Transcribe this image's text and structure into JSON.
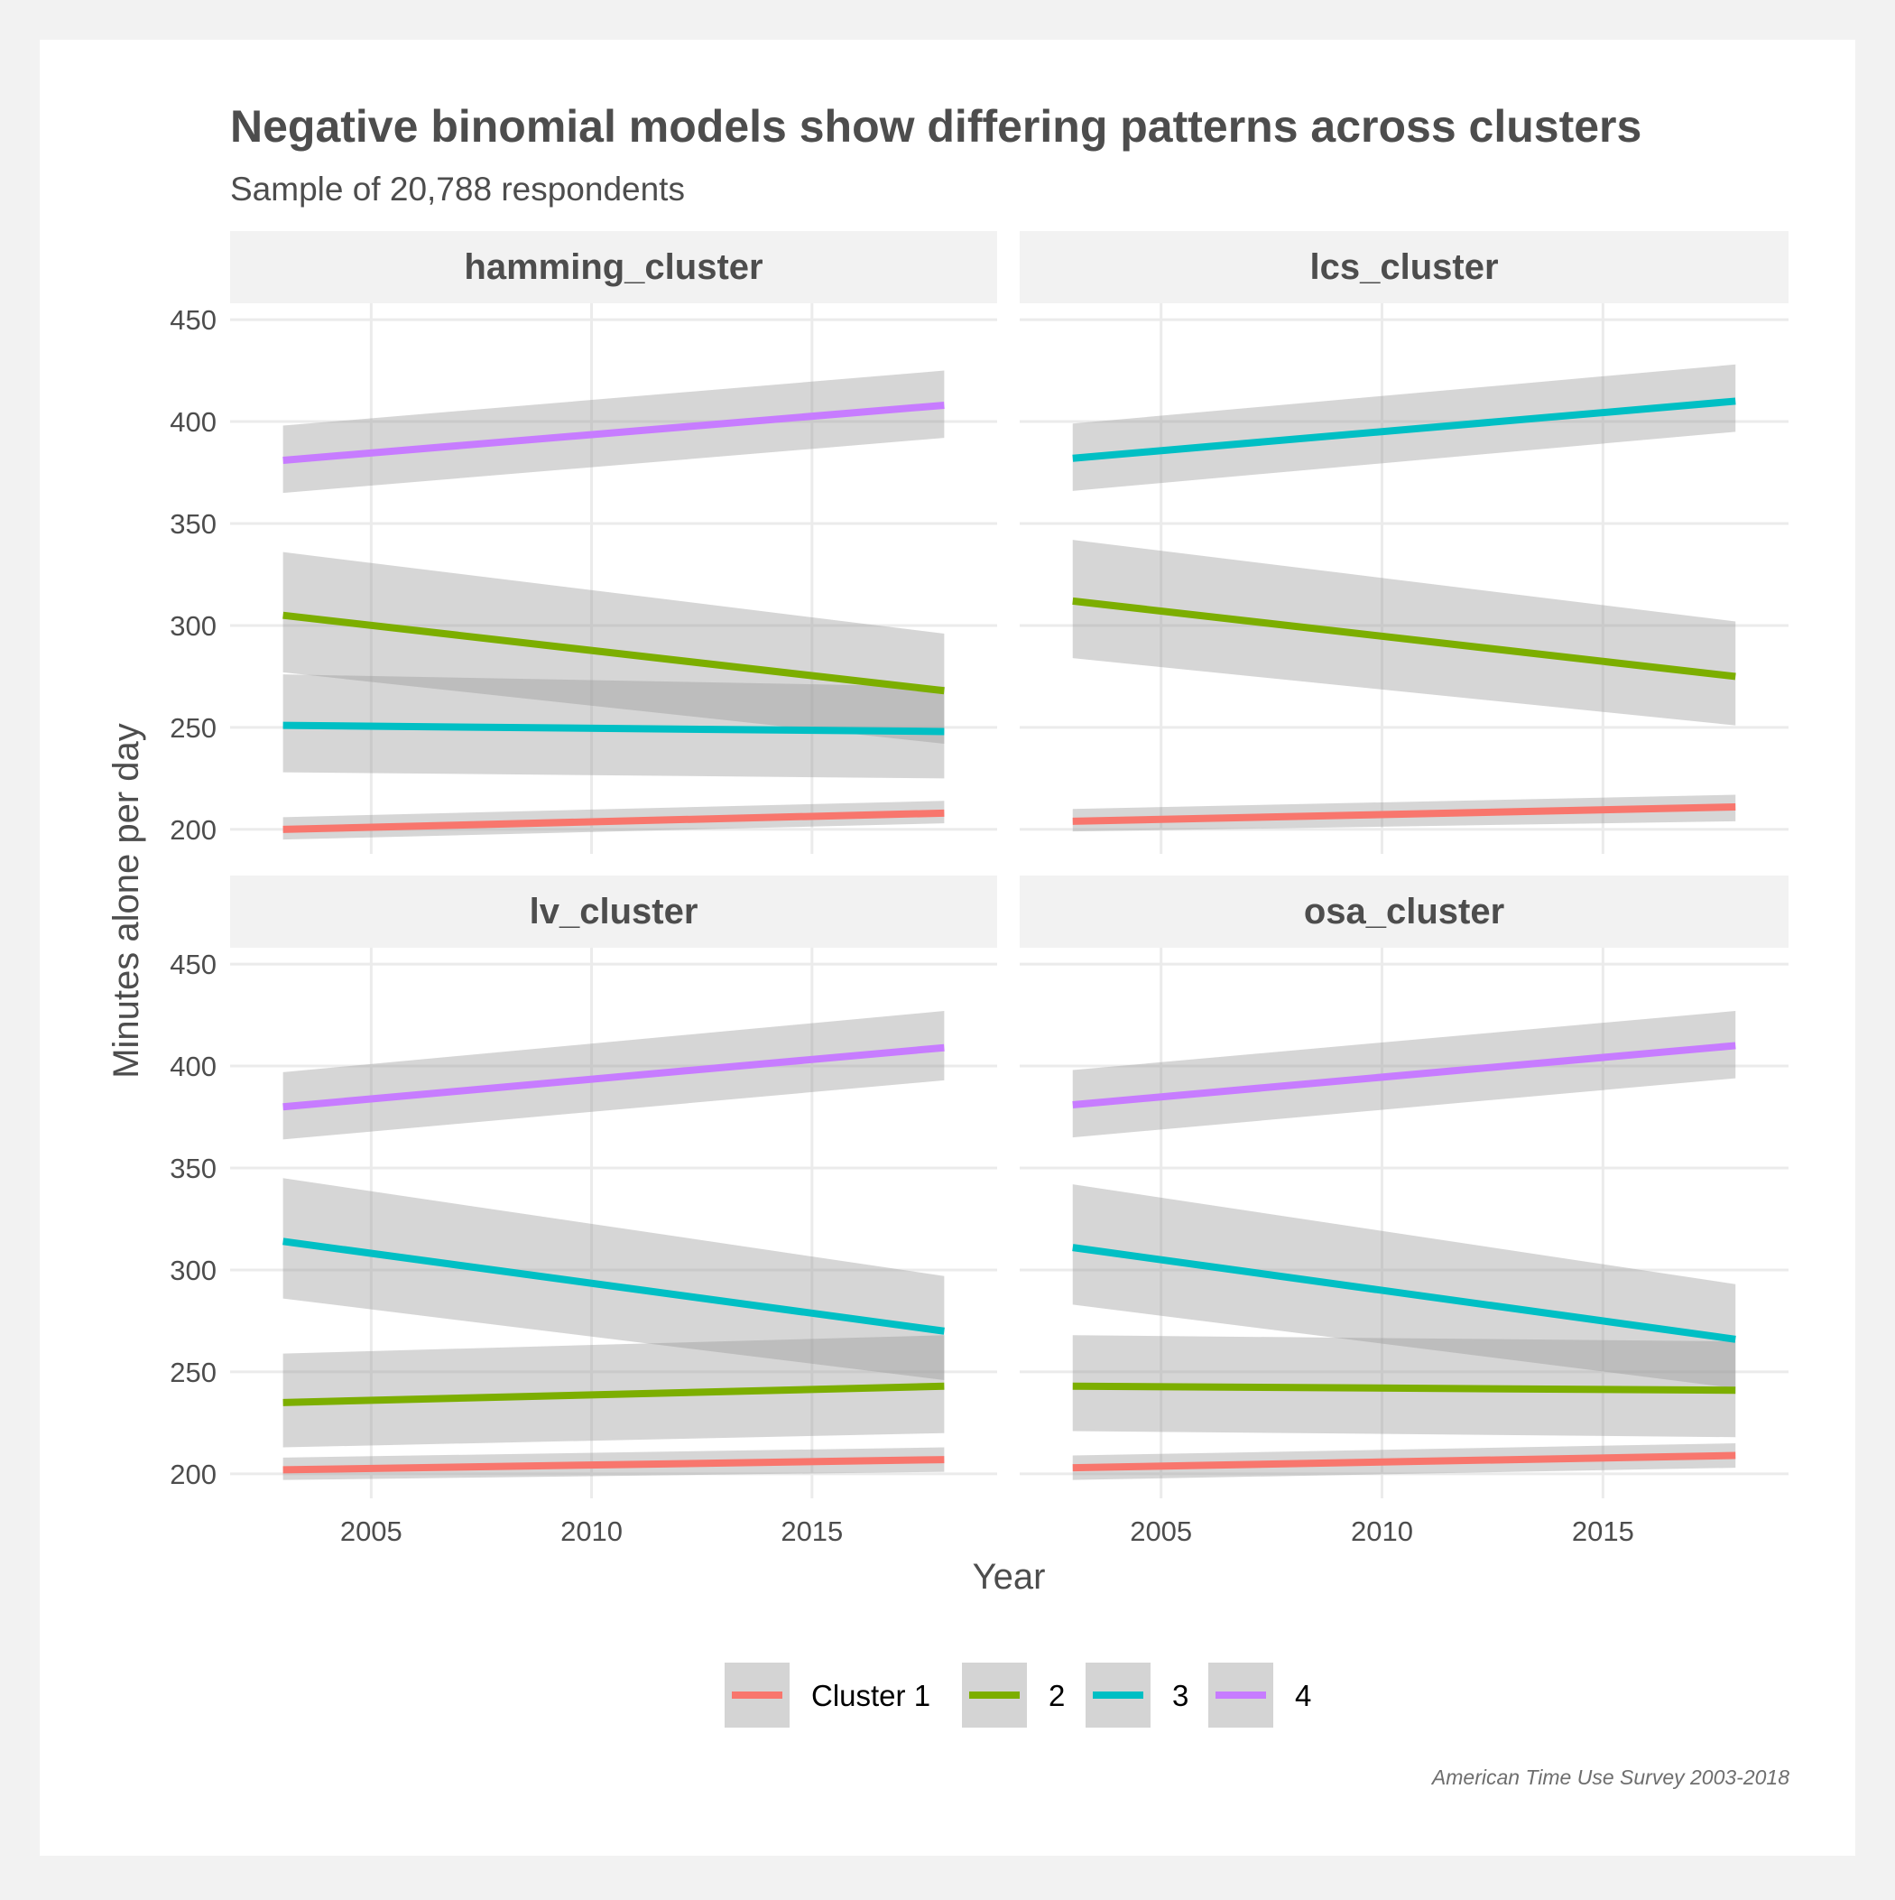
{
  "chart_data": {
    "type": "line",
    "title": "Negative binomial models show differing patterns across clusters",
    "subtitle": "Sample of 20,788 respondents",
    "caption": "American Time Use Survey 2003-2018",
    "xlabel": "Year",
    "ylabel": "Minutes alone per day",
    "xlim": [
      2001.8,
      2019.2
    ],
    "ylim": [
      188,
      458
    ],
    "x_ticks": [
      2005,
      2010,
      2015
    ],
    "y_ticks": [
      200,
      250,
      300,
      350,
      400,
      450
    ],
    "grid": true,
    "confidence_bands": true,
    "legend_position": "bottom",
    "colors": {
      "1": "#F8766D",
      "2": "#7CAE00",
      "3": "#00BFC4",
      "4": "#C77CFF"
    },
    "legend": [
      {
        "key": "1",
        "label": "Cluster 1"
      },
      {
        "key": "2",
        "label": "2"
      },
      {
        "key": "3",
        "label": "3"
      },
      {
        "key": "4",
        "label": "4"
      }
    ],
    "panels": [
      {
        "name": "hamming_cluster",
        "series": [
          {
            "key": "1",
            "x": [
              2003,
              2018
            ],
            "y": [
              200,
              208
            ],
            "lower": [
              195,
              203
            ],
            "upper": [
              206,
              214
            ]
          },
          {
            "key": "2",
            "x": [
              2003,
              2018
            ],
            "y": [
              305,
              268
            ],
            "lower": [
              277,
              242
            ],
            "upper": [
              336,
              296
            ]
          },
          {
            "key": "3",
            "x": [
              2003,
              2018
            ],
            "y": [
              251,
              248
            ],
            "lower": [
              228,
              225
            ],
            "upper": [
              276,
              270
            ]
          },
          {
            "key": "4",
            "x": [
              2003,
              2018
            ],
            "y": [
              381,
              408
            ],
            "lower": [
              365,
              392
            ],
            "upper": [
              398,
              425
            ]
          }
        ]
      },
      {
        "name": "lcs_cluster",
        "series": [
          {
            "key": "1",
            "x": [
              2003,
              2018
            ],
            "y": [
              204,
              211
            ],
            "lower": [
              199,
              204
            ],
            "upper": [
              210,
              217
            ]
          },
          {
            "key": "3",
            "x": [
              2003,
              2018
            ],
            "y": [
              382,
              410
            ],
            "lower": [
              366,
              395
            ],
            "upper": [
              399,
              428
            ]
          },
          {
            "key": "2",
            "x": [
              2003,
              2018
            ],
            "y": [
              312,
              275
            ],
            "lower": [
              284,
              251
            ],
            "upper": [
              342,
              302
            ]
          }
        ]
      },
      {
        "name": "lv_cluster",
        "series": [
          {
            "key": "1",
            "x": [
              2003,
              2018
            ],
            "y": [
              202,
              207
            ],
            "lower": [
              197,
              201
            ],
            "upper": [
              208,
              213
            ]
          },
          {
            "key": "2",
            "x": [
              2003,
              2018
            ],
            "y": [
              235,
              243
            ],
            "lower": [
              213,
              220
            ],
            "upper": [
              259,
              268
            ]
          },
          {
            "key": "4",
            "x": [
              2003,
              2018
            ],
            "y": [
              380,
              409
            ],
            "lower": [
              364,
              393
            ],
            "upper": [
              397,
              427
            ]
          },
          {
            "key": "3",
            "x": [
              2003,
              2018
            ],
            "y": [
              314,
              270
            ],
            "lower": [
              286,
              246
            ],
            "upper": [
              345,
              297
            ]
          }
        ]
      },
      {
        "name": "osa_cluster",
        "series": [
          {
            "key": "1",
            "x": [
              2003,
              2018
            ],
            "y": [
              203,
              209
            ],
            "lower": [
              197,
              203
            ],
            "upper": [
              209,
              215
            ]
          },
          {
            "key": "2",
            "x": [
              2003,
              2018
            ],
            "y": [
              243,
              241
            ],
            "lower": [
              221,
              218
            ],
            "upper": [
              268,
              265
            ]
          },
          {
            "key": "4",
            "x": [
              2003,
              2018
            ],
            "y": [
              381,
              410
            ],
            "lower": [
              365,
              394
            ],
            "upper": [
              398,
              427
            ]
          },
          {
            "key": "3",
            "x": [
              2003,
              2018
            ],
            "y": [
              311,
              266
            ],
            "lower": [
              283,
              242
            ],
            "upper": [
              342,
              293
            ]
          }
        ]
      }
    ]
  }
}
